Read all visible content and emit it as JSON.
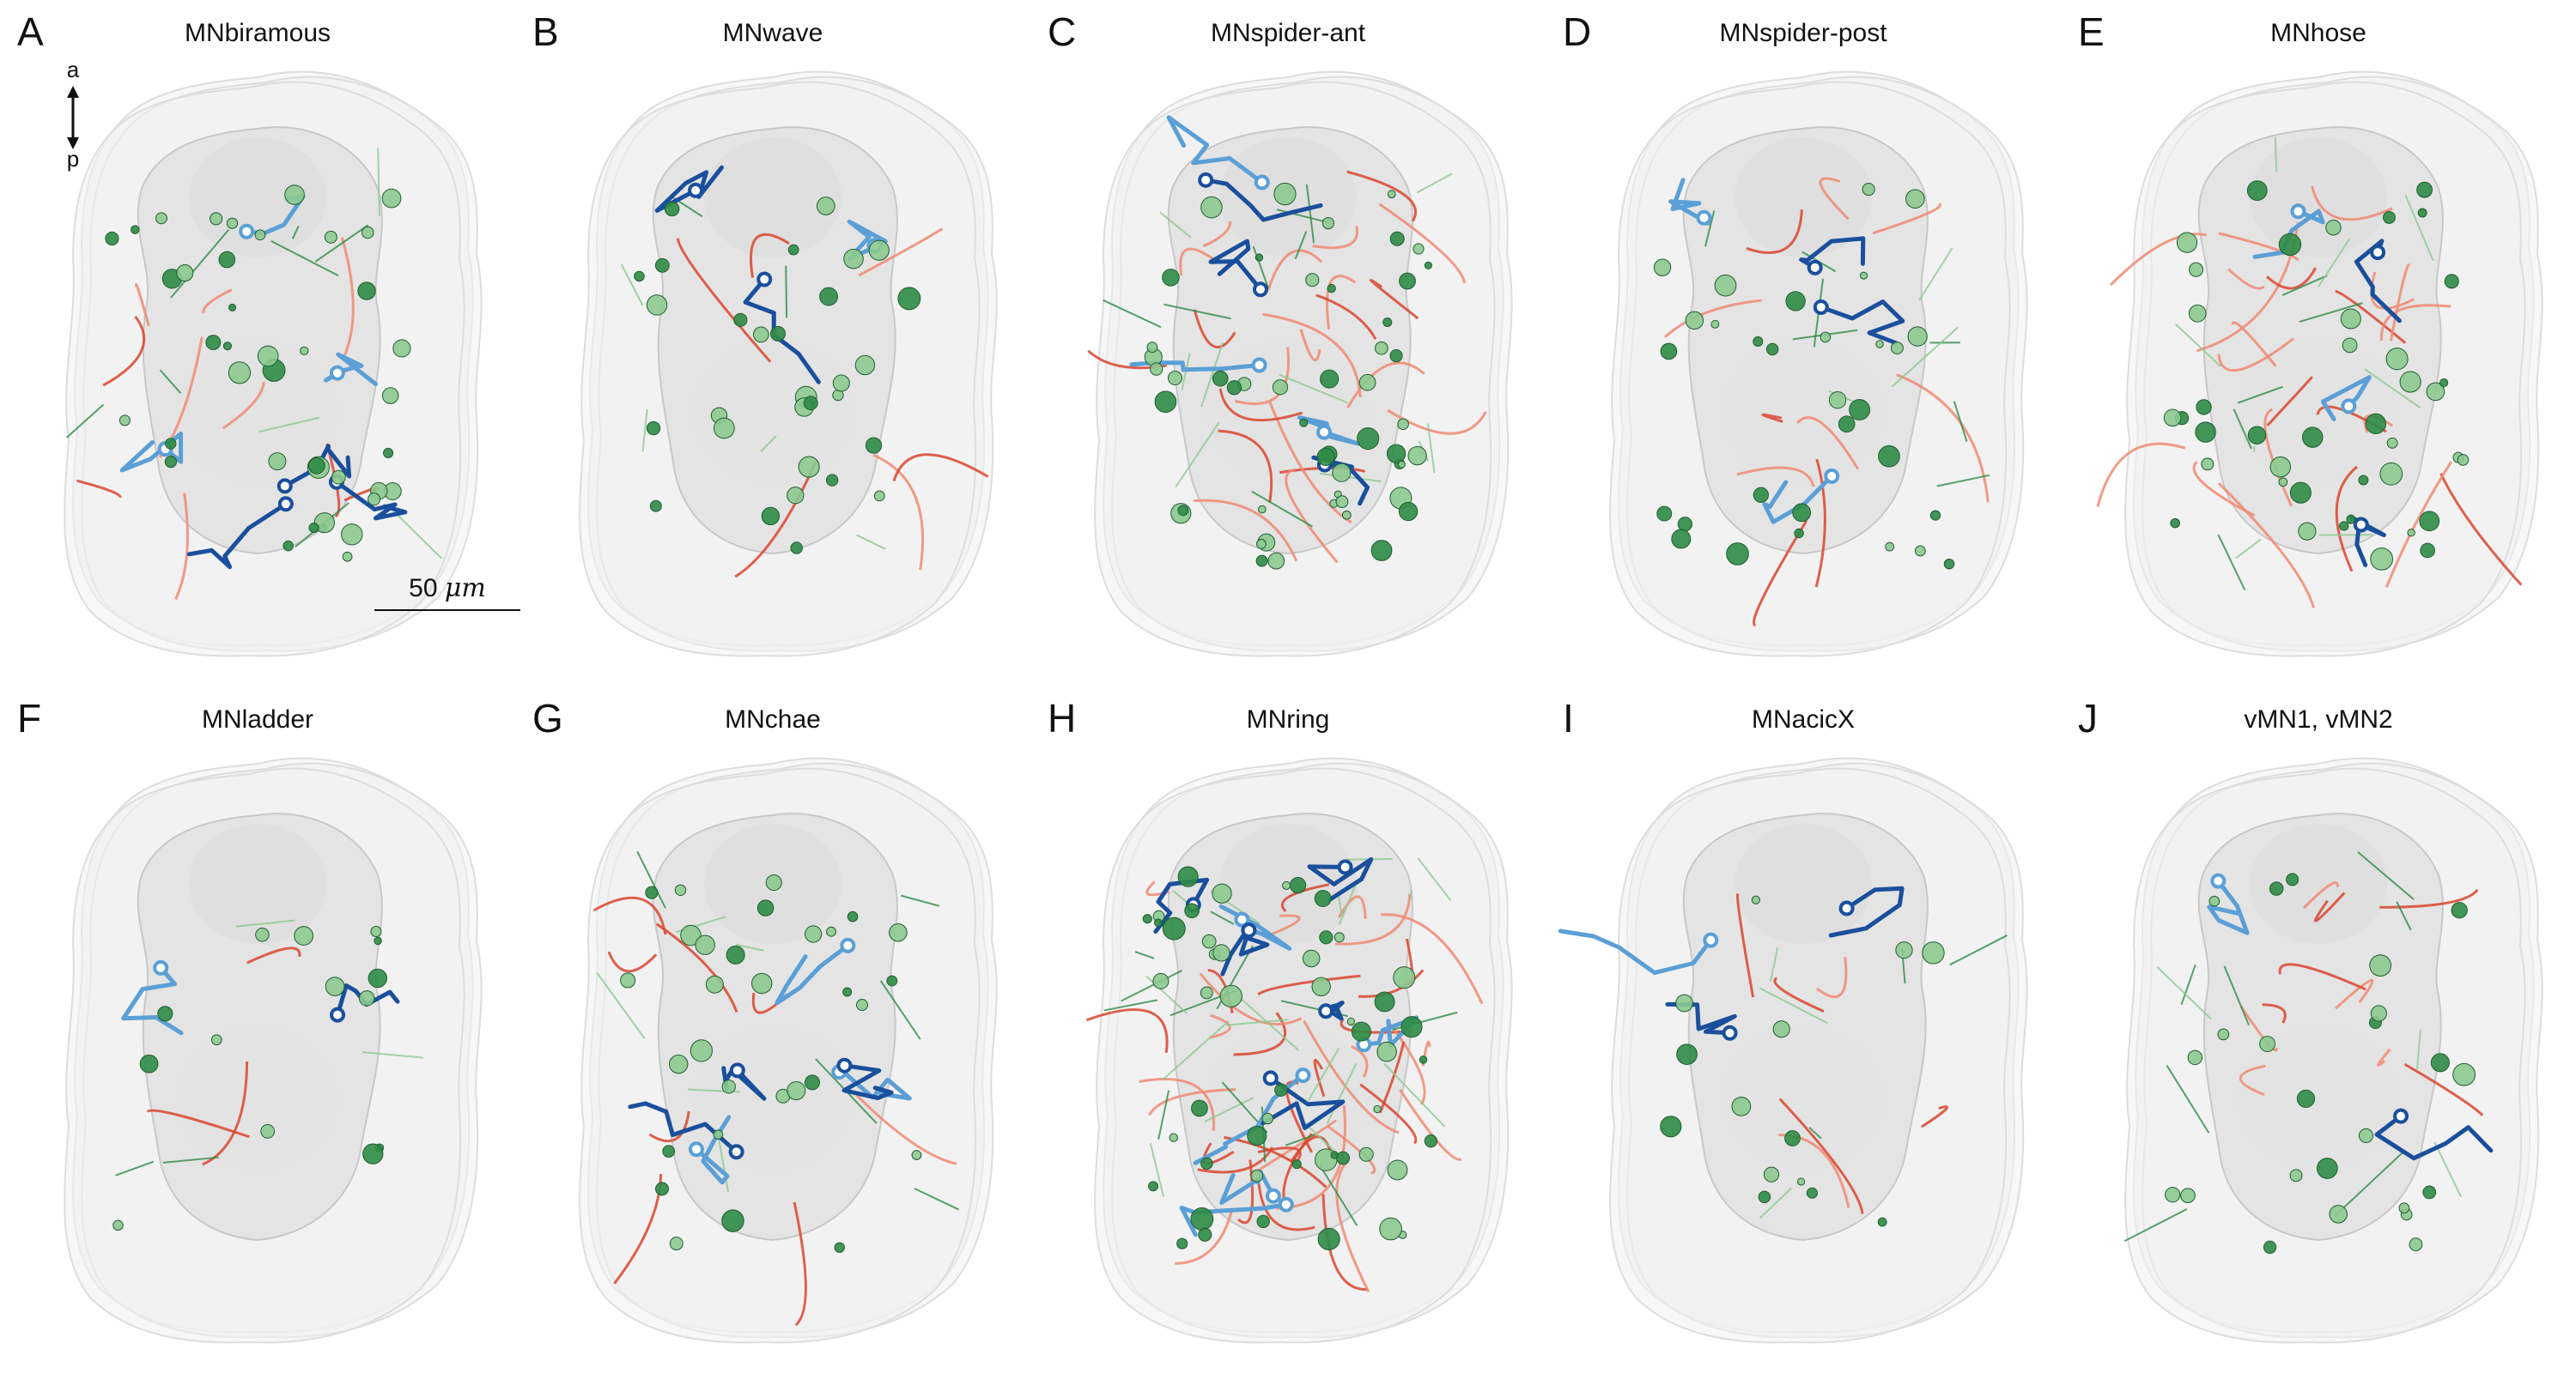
{
  "panels": [
    {
      "letter": "A",
      "title": "MNbiramous"
    },
    {
      "letter": "B",
      "title": "MNwave"
    },
    {
      "letter": "C",
      "title": "MNspider-ant"
    },
    {
      "letter": "D",
      "title": "MNspider-post"
    },
    {
      "letter": "E",
      "title": "MNhose"
    },
    {
      "letter": "F",
      "title": "MNladder"
    },
    {
      "letter": "G",
      "title": "MNchae"
    },
    {
      "letter": "H",
      "title": "MNring"
    },
    {
      "letter": "I",
      "title": "MNacicX"
    },
    {
      "letter": "J",
      "title": "vMN1, vMN2"
    }
  ],
  "orientation": {
    "anterior": "a",
    "posterior": "p"
  },
  "scale_bar": {
    "value": "50",
    "unit": "μm"
  },
  "colors": {
    "dark_blue": "#1a4f9c",
    "light_blue": "#5b9fd6",
    "red": "#d9452f",
    "salmon": "#f08a73",
    "green": "#2e8b45",
    "light_green": "#8cc98f",
    "body_outline": "#e6e6e6"
  }
}
